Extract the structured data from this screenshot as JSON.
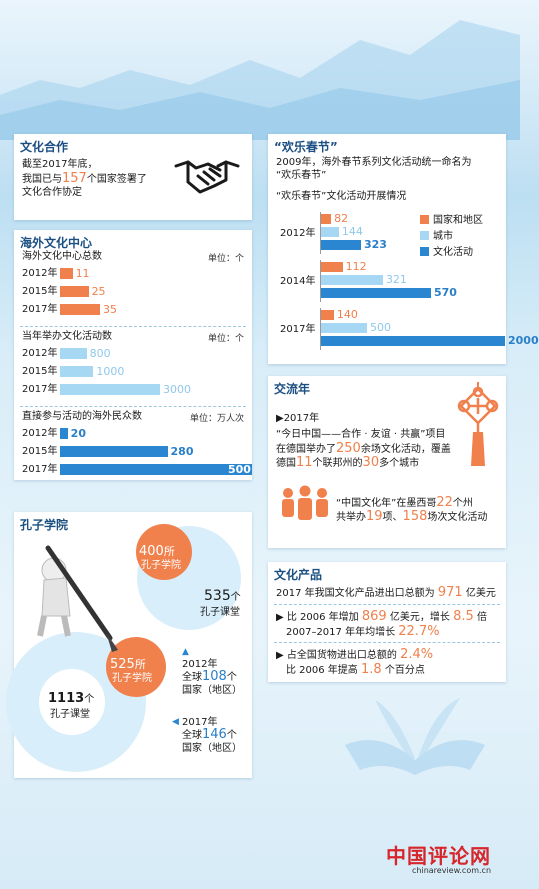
{
  "coop": {
    "title": "文化合作",
    "l1": "截至2017年底，",
    "l2_pre": "我国已与",
    "l2_num": "157",
    "l2_post": "个国家签署了",
    "l3": "文化合作协定"
  },
  "centers": {
    "title": "海外文化中心",
    "s1_title": "海外文化中心总数",
    "s1_unit": "单位：个",
    "s2_title": "当年举办文化活动数",
    "s2_unit": "单位：个",
    "s3_title": "直接参与活动的海外民众数",
    "s3_unit": "单位：万人次",
    "years": [
      "2012年",
      "2015年",
      "2017年"
    ]
  },
  "spring": {
    "title": "“欢乐春节”",
    "l1": "2009年，海外春节系列文化活动统一命名为",
    "l2": "“欢乐春节”",
    "sub": "“欢乐春节”文化活动开展情况",
    "years": [
      "2012年",
      "2014年",
      "2017年"
    ],
    "legend": [
      "国家和地区",
      "城市",
      "文化活动"
    ]
  },
  "exchange": {
    "title": "交流年",
    "year": "▶2017年",
    "p1a": "“今日中国——合作 · 友谊 · 共赢”项目",
    "p1b_pre": "在德国举办了",
    "p1b_num": "250",
    "p1b_post": "余场文化活动，覆盖",
    "p1c_pre": "德国",
    "p1c_num1": "11",
    "p1c_mid": "个联邦州的",
    "p1c_num2": "30",
    "p1c_post": "多个城市",
    "p2a_pre": "“中国文化年”在墨西哥",
    "p2a_num": "22",
    "p2a_post": "个州",
    "p2b_pre": "共举办",
    "p2b_num1": "19",
    "p2b_mid": "项、",
    "p2b_num2": "158",
    "p2b_post": "场次文化活动"
  },
  "confucius": {
    "title": "孔子学院",
    "c2012_inst_num": "400",
    "c2012_inst_unit": "所",
    "c2012_inst_label": "孔子学院",
    "c2012_class_num": "535",
    "c2012_class_unit": "个",
    "c2012_class_label": "孔子课堂",
    "c2017_inst_num": "525",
    "c2017_inst_unit": "所",
    "c2017_inst_label": "孔子学院",
    "c2017_class_num": "1113",
    "c2017_class_unit": "个",
    "c2017_class_label": "孔子课堂",
    "n2012_year": "2012年",
    "n2012_pre": "全球",
    "n2012_num": "108",
    "n2012_post": "个",
    "n2012_l3": "国家（地区）",
    "n2017_year": "2017年",
    "n2017_pre": "全球",
    "n2017_num": "146",
    "n2017_post": "个",
    "n2017_l3": "国家（地区）"
  },
  "products": {
    "title": "文化产品",
    "l1_pre": "2017 年我国文化产品进出口总额为",
    "l1_num": "971",
    "l1_post": "亿美元",
    "l2_pre": "▶ 比 2006 年增加",
    "l2_num1": "869",
    "l2_mid": "亿美元，增长",
    "l2_num2": "8.5",
    "l2_post": "倍",
    "l3_pre": "2007–2017 年年均增长",
    "l3_num": "22.7%",
    "l4_pre": "▶ 占全国货物进出口总额的",
    "l4_num": "2.4%",
    "l5_pre": "比 2006 年提高",
    "l5_num": "1.8",
    "l5_post": "个百分点"
  },
  "watermark": {
    "logo": "中国评论网",
    "url": "chinareview.com.cn"
  },
  "colors": {
    "orange": "#f0804c",
    "light_blue": "#a6d8f3",
    "blue": "#2a86d1",
    "title_blue": "#1b4f82"
  },
  "chart_data": [
    {
      "type": "bar",
      "title": "海外文化中心总数",
      "unit": "单位：个",
      "categories": [
        "2012年",
        "2015年",
        "2017年"
      ],
      "values": [
        11,
        25,
        35
      ],
      "color": "#f0804c"
    },
    {
      "type": "bar",
      "title": "当年举办文化活动数",
      "unit": "单位：个",
      "categories": [
        "2012年",
        "2015年",
        "2017年"
      ],
      "values": [
        800,
        1000,
        3000
      ],
      "color": "#a6d8f3"
    },
    {
      "type": "bar",
      "title": "直接参与活动的海外民众数",
      "unit": "单位：万人次",
      "categories": [
        "2012年",
        "2015年",
        "2017年"
      ],
      "values": [
        20,
        280,
        500
      ],
      "color": "#2a86d1"
    },
    {
      "type": "bar",
      "title": "“欢乐春节”文化活动开展情况",
      "categories": [
        "2012年",
        "2014年",
        "2017年"
      ],
      "series": [
        {
          "name": "国家和地区",
          "values": [
            82,
            112,
            140
          ],
          "color": "#f0804c"
        },
        {
          "name": "城市",
          "values": [
            144,
            321,
            500
          ],
          "color": "#a6d8f3"
        },
        {
          "name": "文化活动",
          "values": [
            323,
            570,
            2000
          ],
          "color": "#2a86d1"
        }
      ]
    }
  ]
}
